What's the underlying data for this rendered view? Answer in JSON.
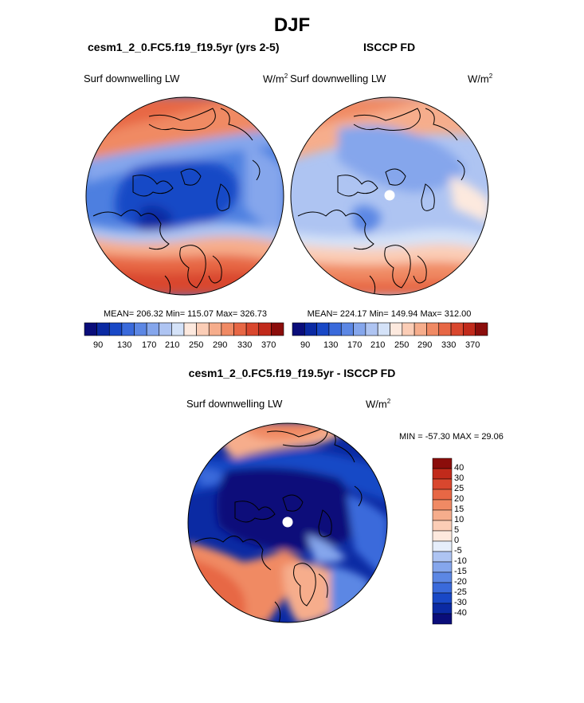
{
  "page": {
    "title": "DJF"
  },
  "colors": {
    "colorbar_seq": [
      "#0a0d7a",
      "#0b2aa3",
      "#1948c6",
      "#3a6adb",
      "#5c87e4",
      "#85a6ec",
      "#aec4f2",
      "#d4e2f8",
      "#fde9de",
      "#fbcdb6",
      "#f6ad8c",
      "#f08a64",
      "#e76745",
      "#d9472e",
      "#c12a1b",
      "#8b0d0b"
    ],
    "diff_colors": [
      "#0a0d7a",
      "#0b2aa3",
      "#1948c6",
      "#3a6adb",
      "#5c87e4",
      "#85a6ec",
      "#aec4f2",
      "#e6eefb",
      "#fde9de",
      "#fbcdb6",
      "#f6ad8c",
      "#f08a64",
      "#e76745",
      "#d9472e",
      "#c12a1b",
      "#8b0d0b"
    ]
  },
  "panels": [
    {
      "title": "cesm1_2_0.FC5.f19_f19.5yr (yrs 2-5)",
      "variable": "Surf downwelling LW",
      "units_base": "W/m",
      "units_exp": "2",
      "stats": "MEAN= 206.32  Min= 115.07  Max= 326.73",
      "colorbar_ticks": [
        "90",
        "130",
        "170",
        "210",
        "250",
        "290",
        "330",
        "370"
      ]
    },
    {
      "title": "ISCCP FD",
      "variable": "Surf downwelling LW",
      "units_base": "W/m",
      "units_exp": "2",
      "stats": "MEAN= 224.17  Min= 149.94  Max= 312.00",
      "colorbar_ticks": [
        "90",
        "130",
        "170",
        "210",
        "250",
        "290",
        "330",
        "370"
      ]
    }
  ],
  "diff": {
    "title": "cesm1_2_0.FC5.f19_f19.5yr - ISCCP FD",
    "variable": "Surf downwelling LW",
    "units_base": "W/m",
    "units_exp": "2",
    "minmax": "MIN = -57.30 MAX =  29.06",
    "colorbar_labels": [
      "40",
      "30",
      "25",
      "20",
      "15",
      "10",
      "5",
      "0",
      "-5",
      "-10",
      "-15",
      "-20",
      "-25",
      "-30",
      "-40"
    ]
  }
}
